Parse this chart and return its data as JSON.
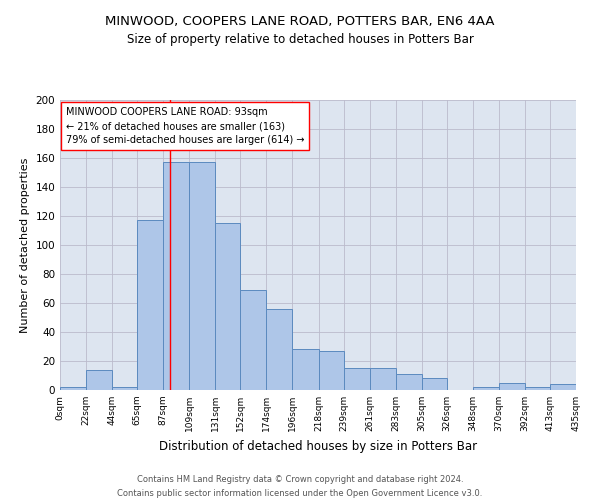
{
  "title": "MINWOOD, COOPERS LANE ROAD, POTTERS BAR, EN6 4AA",
  "subtitle": "Size of property relative to detached houses in Potters Bar",
  "xlabel": "Distribution of detached houses by size in Potters Bar",
  "ylabel": "Number of detached properties",
  "bar_edges": [
    0,
    22,
    44,
    65,
    87,
    109,
    131,
    152,
    174,
    196,
    218,
    239,
    261,
    283,
    305,
    326,
    348,
    370,
    392,
    413,
    435
  ],
  "bar_heights": [
    2,
    14,
    2,
    117,
    157,
    157,
    115,
    69,
    56,
    28,
    27,
    15,
    15,
    11,
    8,
    0,
    2,
    5,
    2,
    4
  ],
  "bar_color": "#aec6e8",
  "bar_edge_color": "#5b8abf",
  "bar_linewidth": 0.7,
  "grid_color": "#bbbbcc",
  "bg_color": "#dde5f0",
  "property_line_x": 93,
  "property_line_color": "red",
  "annotation_text": "MINWOOD COOPERS LANE ROAD: 93sqm\n← 21% of detached houses are smaller (163)\n79% of semi-detached houses are larger (614) →",
  "annotation_box_color": "white",
  "annotation_box_edge": "red",
  "ylim": [
    0,
    200
  ],
  "yticks": [
    0,
    20,
    40,
    60,
    80,
    100,
    120,
    140,
    160,
    180,
    200
  ],
  "tick_labels": [
    "0sqm",
    "22sqm",
    "44sqm",
    "65sqm",
    "87sqm",
    "109sqm",
    "131sqm",
    "152sqm",
    "174sqm",
    "196sqm",
    "218sqm",
    "239sqm",
    "261sqm",
    "283sqm",
    "305sqm",
    "326sqm",
    "348sqm",
    "370sqm",
    "392sqm",
    "413sqm",
    "435sqm"
  ],
  "footnote": "Contains HM Land Registry data © Crown copyright and database right 2024.\nContains public sector information licensed under the Open Government Licence v3.0.",
  "title_fontsize": 9.5,
  "subtitle_fontsize": 8.5,
  "xlabel_fontsize": 8.5,
  "ylabel_fontsize": 8,
  "tick_fontsize": 6.5,
  "annotation_fontsize": 7,
  "footnote_fontsize": 6
}
